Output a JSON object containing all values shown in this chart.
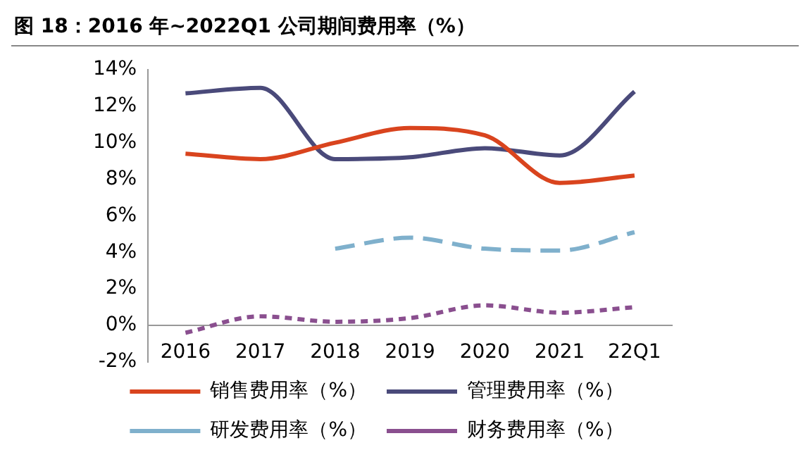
{
  "chart_data": {
    "type": "line",
    "title": "图 18：2016 年~2022Q1 公司期间费用率（%）",
    "categories": [
      "2016",
      "2017",
      "2018",
      "2019",
      "2020",
      "2021",
      "22Q1"
    ],
    "series": [
      {
        "name": "销售费用率（%）",
        "color": "#d9441e",
        "values": [
          9.4,
          9.1,
          10.0,
          10.8,
          10.4,
          7.8,
          8.2
        ]
      },
      {
        "name": "管理费用率（%）",
        "color": "#4a4a7a",
        "values": [
          12.7,
          13.0,
          9.1,
          9.2,
          9.7,
          9.3,
          12.8
        ]
      },
      {
        "name": "研发费用率（%）",
        "color": "#7fb0cc",
        "values": [
          null,
          null,
          4.2,
          4.8,
          4.2,
          4.1,
          5.1
        ],
        "line_style": "dashed"
      },
      {
        "name": "财务费用率（%）",
        "color": "#8a4f8f",
        "values": [
          -0.4,
          0.5,
          0.2,
          0.4,
          1.1,
          0.7,
          1.0
        ],
        "line_style": "dotted"
      }
    ],
    "ylim": [
      -2,
      14
    ],
    "yticks": [
      {
        "value": -2,
        "label": "-2%"
      },
      {
        "value": 0,
        "label": "0%"
      },
      {
        "value": 2,
        "label": "2%"
      },
      {
        "value": 4,
        "label": "4%"
      },
      {
        "value": 6,
        "label": "6%"
      },
      {
        "value": 8,
        "label": "8%"
      },
      {
        "value": 10,
        "label": "10%"
      },
      {
        "value": 12,
        "label": "12%"
      },
      {
        "value": 14,
        "label": "14%"
      }
    ],
    "grid": false,
    "legend": "bottom",
    "marker": "none",
    "line_style": "solid"
  }
}
